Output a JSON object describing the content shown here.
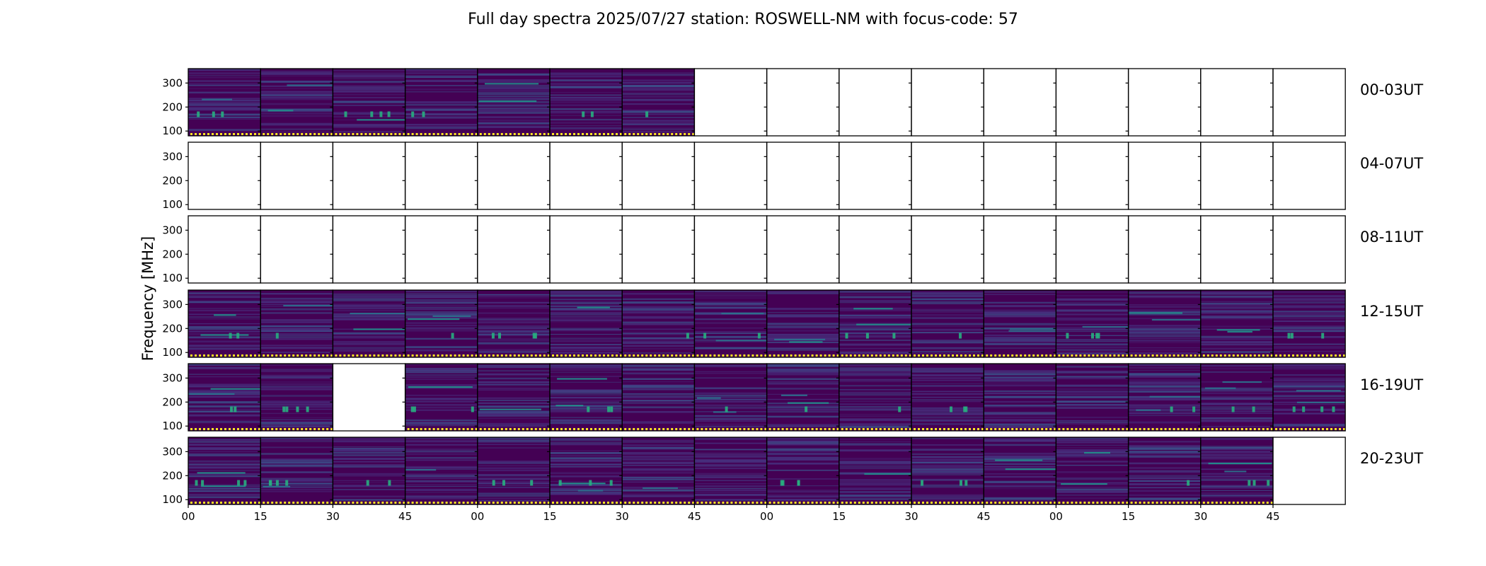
{
  "chart_data": {
    "type": "heatmap",
    "title": "Full day spectra 2025/07/27 station: ROSWELL-NM with focus-code: 57",
    "ylabel": "Frequency [MHz]",
    "xlabel": "",
    "yticks": [
      "100",
      "200",
      "300"
    ],
    "xticks": [
      "00",
      "15",
      "30",
      "45",
      "00",
      "15",
      "30",
      "45",
      "00",
      "15",
      "30",
      "45",
      "00",
      "15",
      "30",
      "45"
    ],
    "ylim": [
      80,
      360
    ],
    "colormap": [
      "#440154",
      "#472f7d",
      "#3b528b",
      "#2c728e",
      "#21918c",
      "#28ae80",
      "#5ec962",
      "#addc30",
      "#fde725"
    ],
    "panels_per_row": 16,
    "grid": false,
    "rows": [
      {
        "label": "00-03UT",
        "present": [
          1,
          1,
          1,
          1,
          1,
          1,
          1,
          0,
          0,
          0,
          0,
          0,
          0,
          0,
          0,
          0
        ]
      },
      {
        "label": "04-07UT",
        "present": [
          0,
          0,
          0,
          0,
          0,
          0,
          0,
          0,
          0,
          0,
          0,
          0,
          0,
          0,
          0,
          0
        ]
      },
      {
        "label": "08-11UT",
        "present": [
          0,
          0,
          0,
          0,
          0,
          0,
          0,
          0,
          0,
          0,
          0,
          0,
          0,
          0,
          0,
          0
        ]
      },
      {
        "label": "12-15UT",
        "present": [
          1,
          1,
          1,
          1,
          1,
          1,
          1,
          1,
          1,
          1,
          1,
          1,
          1,
          1,
          1,
          1
        ]
      },
      {
        "label": "16-19UT",
        "present": [
          1,
          1,
          0,
          1,
          1,
          1,
          1,
          1,
          1,
          1,
          1,
          1,
          1,
          1,
          1,
          1
        ]
      },
      {
        "label": "20-23UT",
        "present": [
          1,
          1,
          1,
          1,
          1,
          1,
          1,
          1,
          1,
          1,
          1,
          1,
          1,
          1,
          1,
          0
        ]
      }
    ]
  }
}
